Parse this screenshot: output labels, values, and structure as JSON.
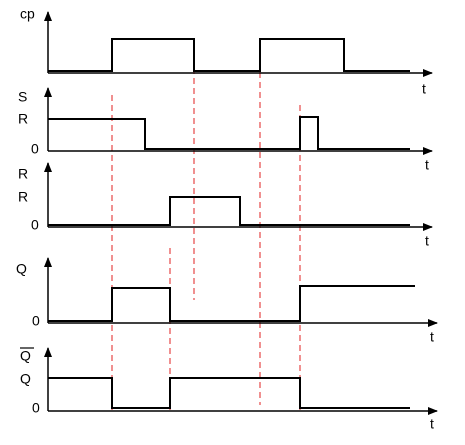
{
  "panels": [
    {
      "signal": "cp",
      "axis_label": "t"
    },
    {
      "signal": "S",
      "level_high": "R",
      "level_low": "0",
      "axis_label": "t"
    },
    {
      "signal": "R",
      "level_high": "R",
      "level_low": "0",
      "axis_label": "t"
    },
    {
      "signal": "Q",
      "level_low": "0",
      "axis_label": "t"
    },
    {
      "signal": "Q",
      "level_high": "Q",
      "level_low": "0",
      "axis_label": "t"
    }
  ]
}
